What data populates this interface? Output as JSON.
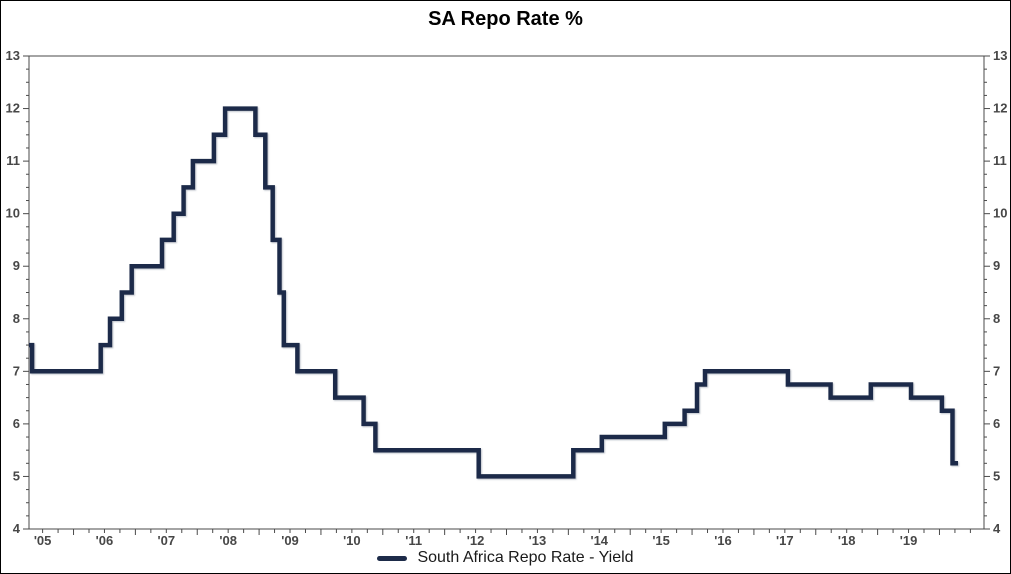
{
  "title": "SA Repo Rate %",
  "legend": {
    "label": "South Africa Repo Rate - Yield",
    "position": "bottom-center"
  },
  "colors": {
    "line": "#1d2b49",
    "axis": "#4a4a4a",
    "tick_label": "#474747",
    "title": "#000000",
    "background": "#ffffff",
    "border": "#000000"
  },
  "chart_data": {
    "type": "line",
    "step": true,
    "title": "SA Repo Rate %",
    "grid": "off",
    "legend_position": "bottom-center",
    "series": [
      {
        "name": "South Africa Repo Rate - Yield",
        "color": "#1d2b49",
        "steps": [
          [
            2005.28,
            7.5
          ],
          [
            2005.33,
            7.0
          ],
          [
            2006.44,
            7.5
          ],
          [
            2006.59,
            8.0
          ],
          [
            2006.78,
            8.5
          ],
          [
            2006.94,
            9.0
          ],
          [
            2007.43,
            9.5
          ],
          [
            2007.62,
            10.0
          ],
          [
            2007.78,
            10.5
          ],
          [
            2007.93,
            11.0
          ],
          [
            2008.27,
            11.5
          ],
          [
            2008.45,
            12.0
          ],
          [
            2008.94,
            11.5
          ],
          [
            2009.1,
            10.5
          ],
          [
            2009.22,
            9.5
          ],
          [
            2009.33,
            8.5
          ],
          [
            2009.4,
            7.5
          ],
          [
            2009.62,
            7.0
          ],
          [
            2010.23,
            6.5
          ],
          [
            2010.69,
            6.0
          ],
          [
            2010.88,
            5.5
          ],
          [
            2012.55,
            5.0
          ],
          [
            2014.08,
            5.5
          ],
          [
            2014.54,
            5.75
          ],
          [
            2015.56,
            6.0
          ],
          [
            2015.88,
            6.25
          ],
          [
            2016.08,
            6.75
          ],
          [
            2016.21,
            7.0
          ],
          [
            2017.55,
            6.75
          ],
          [
            2018.24,
            6.5
          ],
          [
            2018.89,
            6.75
          ],
          [
            2019.54,
            6.5
          ],
          [
            2020.04,
            6.25
          ],
          [
            2020.21,
            5.25
          ],
          [
            2020.3,
            5.25
          ]
        ]
      }
    ],
    "x_axis": {
      "range": [
        2005.28,
        2020.72
      ],
      "major_tick_every": 1,
      "minor_tick_every": 0.25,
      "tick_labels": [
        {
          "text": "'05",
          "x": 2005.5
        },
        {
          "text": "'06",
          "x": 2006.5
        },
        {
          "text": "'07",
          "x": 2007.5
        },
        {
          "text": "'08",
          "x": 2008.5
        },
        {
          "text": "'09",
          "x": 2009.5
        },
        {
          "text": "'10",
          "x": 2010.5
        },
        {
          "text": "'11",
          "x": 2011.5
        },
        {
          "text": "'12",
          "x": 2012.5
        },
        {
          "text": "'13",
          "x": 2013.5
        },
        {
          "text": "'14",
          "x": 2014.5
        },
        {
          "text": "'15",
          "x": 2015.5
        },
        {
          "text": "'16",
          "x": 2016.5
        },
        {
          "text": "'17",
          "x": 2017.5
        },
        {
          "text": "'18",
          "x": 2018.5
        },
        {
          "text": "'19",
          "x": 2019.5
        }
      ]
    },
    "y_axis": {
      "range": [
        4,
        13
      ],
      "labeled_ticks": [
        4,
        5,
        6,
        7,
        8,
        9,
        10,
        11,
        12,
        13
      ],
      "minor_tick_every": 0.25,
      "sides": "both"
    }
  }
}
